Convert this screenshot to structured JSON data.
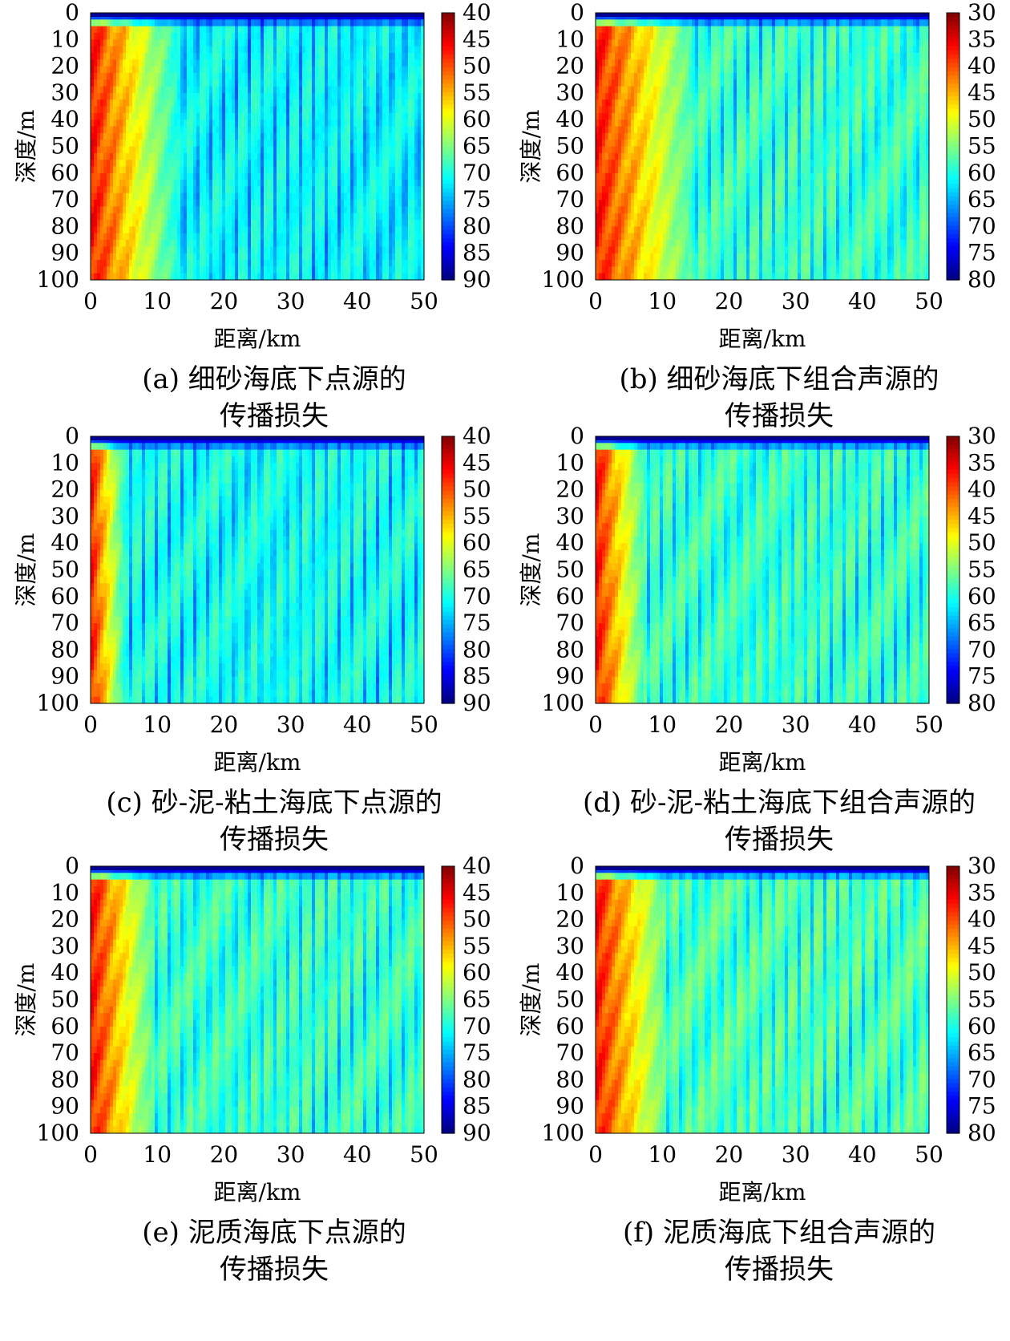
{
  "chart_data": [
    {
      "type": "heatmap",
      "caption_lines": [
        "(a) 细砂海底下点源的",
        "传播损失"
      ],
      "xlabel": "距离/km",
      "ylabel": "深度/m",
      "x_ticks": [
        "0",
        "10",
        "20",
        "30",
        "40",
        "50"
      ],
      "y_ticks": [
        "0",
        "10",
        "20",
        "30",
        "40",
        "50",
        "60",
        "70",
        "80",
        "90",
        "100"
      ],
      "xlim": [
        0,
        50
      ],
      "ylim": [
        0,
        100
      ],
      "y_inverted": true,
      "colorbar_ticks": [
        "40",
        "45",
        "50",
        "55",
        "60",
        "65",
        "70",
        "75",
        "80",
        "85",
        "90"
      ],
      "colorbar_range": [
        40,
        90
      ],
      "colormap": "jet-reversed",
      "near_field_km": 13,
      "background_value": 70,
      "surface_value": 88,
      "bottom": "fine-sand",
      "source": "point"
    },
    {
      "type": "heatmap",
      "caption_lines": [
        "(b) 细砂海底下组合声源的",
        "传播损失"
      ],
      "xlabel": "距离/km",
      "ylabel": "深度/m",
      "x_ticks": [
        "0",
        "10",
        "20",
        "30",
        "40",
        "50"
      ],
      "y_ticks": [
        "0",
        "10",
        "20",
        "30",
        "40",
        "50",
        "60",
        "70",
        "80",
        "90",
        "100"
      ],
      "xlim": [
        0,
        50
      ],
      "ylim": [
        0,
        100
      ],
      "y_inverted": true,
      "colorbar_ticks": [
        "30",
        "35",
        "40",
        "45",
        "50",
        "55",
        "60",
        "65",
        "70",
        "75",
        "80"
      ],
      "colorbar_range": [
        30,
        80
      ],
      "colormap": "jet-reversed",
      "near_field_km": 14,
      "background_value": 57,
      "surface_value": 78,
      "bottom": "fine-sand",
      "source": "combined"
    },
    {
      "type": "heatmap",
      "caption_lines": [
        "(c) 砂-泥-粘土海底下点源的",
        "传播损失"
      ],
      "xlabel": "距离/km",
      "ylabel": "深度/m",
      "x_ticks": [
        "0",
        "10",
        "20",
        "30",
        "40",
        "50"
      ],
      "y_ticks": [
        "0",
        "10",
        "20",
        "30",
        "40",
        "50",
        "60",
        "70",
        "80",
        "90",
        "100"
      ],
      "xlim": [
        0,
        50
      ],
      "ylim": [
        0,
        100
      ],
      "y_inverted": true,
      "colorbar_ticks": [
        "40",
        "45",
        "50",
        "55",
        "60",
        "65",
        "70",
        "75",
        "80",
        "85",
        "90"
      ],
      "colorbar_range": [
        40,
        90
      ],
      "colormap": "jet-reversed",
      "near_field_km": 5,
      "background_value": 69,
      "surface_value": 88,
      "bottom": "sand-silt-clay",
      "source": "point"
    },
    {
      "type": "heatmap",
      "caption_lines": [
        "(d) 砂-泥-粘土海底下组合声源的",
        "传播损失"
      ],
      "xlabel": "距离/km",
      "ylabel": "深度/m",
      "x_ticks": [
        "0",
        "10",
        "20",
        "30",
        "40",
        "50"
      ],
      "y_ticks": [
        "0",
        "10",
        "20",
        "30",
        "40",
        "50",
        "60",
        "70",
        "80",
        "90",
        "100"
      ],
      "xlim": [
        0,
        50
      ],
      "ylim": [
        0,
        100
      ],
      "y_inverted": true,
      "colorbar_ticks": [
        "30",
        "35",
        "40",
        "45",
        "50",
        "55",
        "60",
        "65",
        "70",
        "75",
        "80"
      ],
      "colorbar_range": [
        30,
        80
      ],
      "colormap": "jet-reversed",
      "near_field_km": 7,
      "background_value": 57,
      "surface_value": 78,
      "bottom": "sand-silt-clay",
      "source": "combined"
    },
    {
      "type": "heatmap",
      "caption_lines": [
        "(e) 泥质海底下点源的",
        "传播损失"
      ],
      "xlabel": "距离/km",
      "ylabel": "深度/m",
      "x_ticks": [
        "0",
        "10",
        "20",
        "30",
        "40",
        "50"
      ],
      "y_ticks": [
        "0",
        "10",
        "20",
        "30",
        "40",
        "50",
        "60",
        "70",
        "80",
        "90",
        "100"
      ],
      "xlim": [
        0,
        50
      ],
      "ylim": [
        0,
        100
      ],
      "y_inverted": true,
      "colorbar_ticks": [
        "40",
        "45",
        "50",
        "55",
        "60",
        "65",
        "70",
        "75",
        "80",
        "85",
        "90"
      ],
      "colorbar_range": [
        40,
        90
      ],
      "colormap": "jet-reversed",
      "near_field_km": 9,
      "background_value": 67,
      "surface_value": 88,
      "bottom": "mud",
      "source": "point"
    },
    {
      "type": "heatmap",
      "caption_lines": [
        "(f) 泥质海底下组合声源的",
        "传播损失"
      ],
      "xlabel": "距离/km",
      "ylabel": "深度/m",
      "x_ticks": [
        "0",
        "10",
        "20",
        "30",
        "40",
        "50"
      ],
      "y_ticks": [
        "0",
        "10",
        "20",
        "30",
        "40",
        "50",
        "60",
        "70",
        "80",
        "90",
        "100"
      ],
      "xlim": [
        0,
        50
      ],
      "ylim": [
        0,
        100
      ],
      "y_inverted": true,
      "colorbar_ticks": [
        "30",
        "35",
        "40",
        "45",
        "50",
        "55",
        "60",
        "65",
        "70",
        "75",
        "80"
      ],
      "colorbar_range": [
        30,
        80
      ],
      "colormap": "jet-reversed",
      "near_field_km": 10,
      "background_value": 56,
      "surface_value": 78,
      "bottom": "mud",
      "source": "combined"
    }
  ]
}
